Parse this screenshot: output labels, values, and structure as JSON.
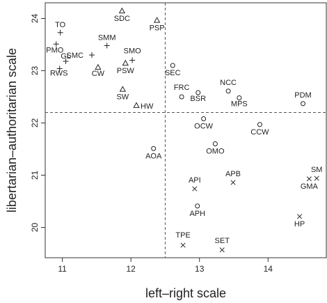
{
  "chart_data": {
    "type": "scatter",
    "title": "",
    "xlabel": "left–right scale",
    "ylabel": "libertarian–authoritarian scale",
    "xlim": [
      10.75,
      14.85
    ],
    "ylim": [
      19.42,
      24.3
    ],
    "xticks": [
      11,
      12,
      13,
      14
    ],
    "yticks": [
      20,
      21,
      22,
      23,
      24
    ],
    "grid": false,
    "reference_lines": {
      "x": 12.5,
      "y": 22.2
    },
    "marker_legend": {
      "plus": "+",
      "triangle": "△",
      "circle": "○",
      "cross": "×"
    },
    "points": [
      {
        "label": "TO",
        "x": 10.97,
        "y": 23.73,
        "marker": "plus"
      },
      {
        "label": "PMO",
        "x": 10.91,
        "y": 23.51,
        "marker": "plus"
      },
      {
        "label": "GL",
        "x": 11.05,
        "y": 23.18,
        "marker": "plus"
      },
      {
        "label": "RWS",
        "x": 10.96,
        "y": 23.04,
        "marker": "plus"
      },
      {
        "label": "SMC",
        "x": 11.43,
        "y": 23.3,
        "marker": "plus"
      },
      {
        "label": "SMM",
        "x": 11.65,
        "y": 23.48,
        "marker": "plus"
      },
      {
        "label": "SMO",
        "x": 12.02,
        "y": 23.2,
        "marker": "plus"
      },
      {
        "label": "CW",
        "x": 11.52,
        "y": 23.06,
        "marker": "triangle"
      },
      {
        "label": "SDC",
        "x": 11.87,
        "y": 24.14,
        "marker": "triangle"
      },
      {
        "label": "PSP",
        "x": 12.38,
        "y": 23.96,
        "marker": "triangle"
      },
      {
        "label": "PSW",
        "x": 11.92,
        "y": 23.14,
        "marker": "triangle"
      },
      {
        "label": "SW",
        "x": 11.88,
        "y": 22.64,
        "marker": "triangle"
      },
      {
        "label": "HW",
        "x": 12.08,
        "y": 22.33,
        "marker": "triangle"
      },
      {
        "label": "SEC",
        "x": 12.61,
        "y": 23.1,
        "marker": "circle"
      },
      {
        "label": "FRC",
        "x": 12.74,
        "y": 22.5,
        "marker": "circle"
      },
      {
        "label": "BSR",
        "x": 12.98,
        "y": 22.58,
        "marker": "circle"
      },
      {
        "label": "NCC",
        "x": 13.42,
        "y": 22.61,
        "marker": "circle"
      },
      {
        "label": "MPS",
        "x": 13.58,
        "y": 22.48,
        "marker": "circle"
      },
      {
        "label": "PDM",
        "x": 14.51,
        "y": 22.37,
        "marker": "circle"
      },
      {
        "label": "OCW",
        "x": 13.06,
        "y": 22.08,
        "marker": "circle"
      },
      {
        "label": "CCW",
        "x": 13.88,
        "y": 21.97,
        "marker": "circle"
      },
      {
        "label": "OMO",
        "x": 13.23,
        "y": 21.6,
        "marker": "circle"
      },
      {
        "label": "AOA",
        "x": 12.33,
        "y": 21.51,
        "marker": "circle"
      },
      {
        "label": "API",
        "x": 12.93,
        "y": 20.74,
        "marker": "cross"
      },
      {
        "label": "APB",
        "x": 13.49,
        "y": 20.86,
        "marker": "cross"
      },
      {
        "label": "APH",
        "x": 12.97,
        "y": 20.41,
        "marker": "circle"
      },
      {
        "label": "SM",
        "x": 14.71,
        "y": 20.94,
        "marker": "cross"
      },
      {
        "label": "GMA",
        "x": 14.6,
        "y": 20.93,
        "marker": "cross"
      },
      {
        "label": "HP",
        "x": 14.46,
        "y": 20.21,
        "marker": "cross"
      },
      {
        "label": "TPE",
        "x": 12.76,
        "y": 19.66,
        "marker": "cross"
      },
      {
        "label": "SET",
        "x": 13.33,
        "y": 19.57,
        "marker": "cross"
      }
    ]
  }
}
